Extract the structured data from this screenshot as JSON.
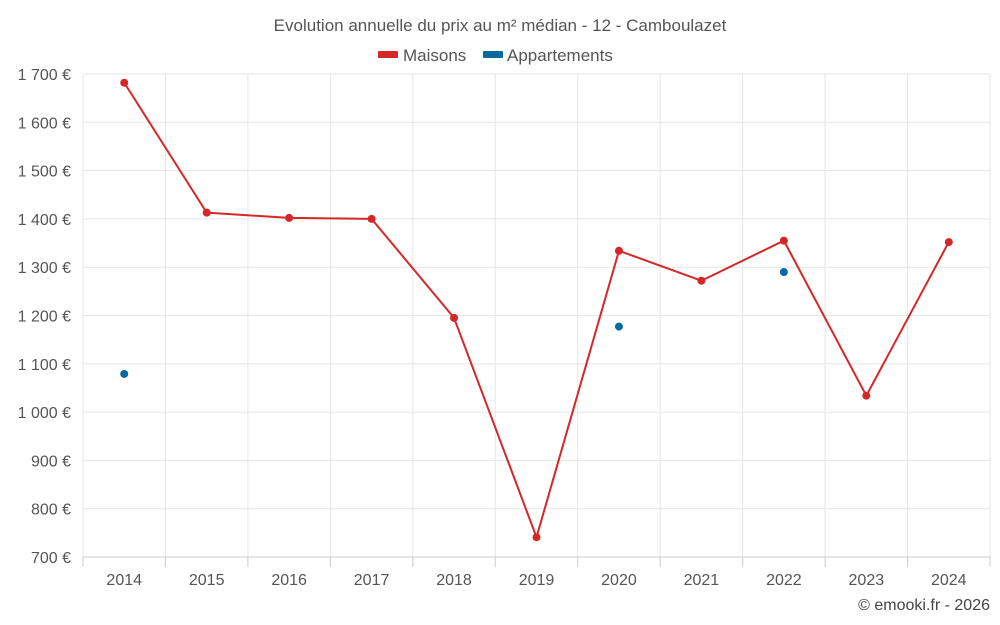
{
  "chart_data": {
    "type": "line",
    "title": "Evolution annuelle du prix au m² médian - 12 - Camboulazet",
    "categories": [
      "2014",
      "2015",
      "2016",
      "2017",
      "2018",
      "2019",
      "2020",
      "2021",
      "2022",
      "2023",
      "2024"
    ],
    "series": [
      {
        "name": "Maisons",
        "color": "#d62728",
        "values": [
          1682,
          1413,
          1402,
          1400,
          1195,
          741,
          1334,
          1272,
          1355,
          1034,
          1352
        ]
      },
      {
        "name": "Appartements",
        "color": "#0868a0",
        "values": [
          1079,
          null,
          null,
          null,
          null,
          null,
          1177,
          null,
          1290,
          null,
          null
        ]
      }
    ],
    "ylim": [
      700,
      1700
    ],
    "yticks": [
      700,
      800,
      900,
      1000,
      1100,
      1200,
      1300,
      1400,
      1500,
      1600,
      1700
    ],
    "ytick_labels": [
      "700 €",
      "800 €",
      "900 €",
      "1 000 €",
      "1 100 €",
      "1 200 €",
      "1 300 €",
      "1 400 €",
      "1 500 €",
      "1 600 €",
      "1 700 €"
    ],
    "xlabel": "",
    "ylabel": "",
    "grid": true,
    "legend_position": "top-center"
  },
  "credit": "© emooki.fr - 2026"
}
